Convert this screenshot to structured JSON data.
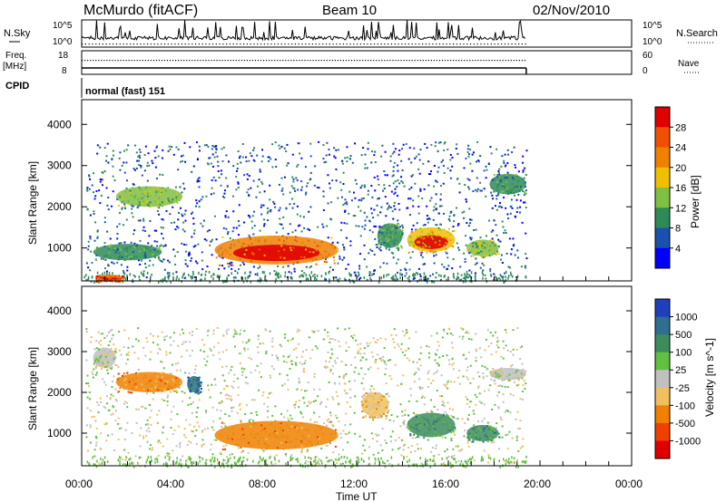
{
  "header": {
    "title": "McMurdo (fitACF)",
    "beam": "Beam 10",
    "date": "02/Nov/2010"
  },
  "summary_panels": {
    "nsky_label": "N.Sky",
    "nsearch_label": "N.Search",
    "freq_label_1": "Freq.",
    "freq_label_2": "[MHz]",
    "nave_label": "Nave",
    "cpid_label": "CPID",
    "cpid_value": "normal (fast) 151",
    "nsky_ticks": [
      "10^5",
      "10^0"
    ],
    "nsearch_ticks": [
      "10^5",
      "10^0"
    ],
    "freq_ticks": [
      "18",
      "8"
    ],
    "nave_ticks": [
      "60",
      "0"
    ]
  },
  "chart_data": [
    {
      "type": "heatmap",
      "panel": "power",
      "ylabel": "Slant Range [km]",
      "yticks": [
        "4000",
        "3000",
        "2000",
        "1000"
      ],
      "ylim": [
        200,
        4600
      ],
      "xlim": [
        0,
        24
      ],
      "colorbar_label": "Power [dB]",
      "colorbar_ticks": [
        "28",
        "24",
        "20",
        "16",
        "12",
        "8",
        "4"
      ],
      "colorbar_colors": [
        "#e00000",
        "#f05000",
        "#f08000",
        "#f0c000",
        "#80c040",
        "#2e8b57",
        "#1a50b0",
        "#0000ff"
      ],
      "data_end_hour": 19.4,
      "blobs": [
        {
          "x0": 5.8,
          "x1": 11.2,
          "y0": 600,
          "y1": 1300,
          "level": 5
        },
        {
          "x0": 14.2,
          "x1": 16.3,
          "y0": 900,
          "y1": 1500,
          "level": 4
        },
        {
          "x0": 1.5,
          "x1": 4.4,
          "y0": 2000,
          "y1": 2500,
          "level": 3
        },
        {
          "x0": 16.8,
          "x1": 18.2,
          "y0": 800,
          "y1": 1200,
          "level": 3
        },
        {
          "x0": 12.9,
          "x1": 14.0,
          "y0": 1000,
          "y1": 1600,
          "level": 2
        },
        {
          "x0": 17.8,
          "x1": 19.4,
          "y0": 2300,
          "y1": 2800,
          "level": 2
        },
        {
          "x0": 0.5,
          "x1": 3.5,
          "y0": 700,
          "y1": 1100,
          "level": 2
        },
        {
          "x0": 0.6,
          "x1": 1.8,
          "y0": 200,
          "y1": 350,
          "level": 6
        }
      ]
    },
    {
      "type": "heatmap",
      "panel": "velocity",
      "ylabel": "Slant Range [km]",
      "yticks": [
        "4000",
        "3000",
        "2000",
        "1000"
      ],
      "ylim": [
        200,
        4600
      ],
      "xlim": [
        0,
        24
      ],
      "colorbar_label": "Velocity [m s^-1]",
      "colorbar_ticks": [
        "1000",
        "500",
        "100",
        "25",
        "-25",
        "-100",
        "-500",
        "-1000"
      ],
      "colorbar_colors": [
        "#1f3fbf",
        "#2e6e8e",
        "#3c8c5c",
        "#60c040",
        "#c0c0c0",
        "#f0c060",
        "#f08000",
        "#f04000",
        "#e00000"
      ],
      "data_end_hour": 19.4,
      "blobs": [
        {
          "x0": 5.8,
          "x1": 11.2,
          "y0": 600,
          "y1": 1300,
          "level": 2
        },
        {
          "x0": 14.2,
          "x1": 16.3,
          "y0": 900,
          "y1": 1500,
          "level": 6
        },
        {
          "x0": 1.5,
          "x1": 4.4,
          "y0": 2000,
          "y1": 2500,
          "level": 2
        },
        {
          "x0": 16.8,
          "x1": 18.2,
          "y0": 800,
          "y1": 1200,
          "level": 6
        },
        {
          "x0": 4.6,
          "x1": 5.2,
          "y0": 2000,
          "y1": 2400,
          "level": 7
        },
        {
          "x0": 17.8,
          "x1": 19.4,
          "y0": 2300,
          "y1": 2600,
          "level": 4
        },
        {
          "x0": 0.5,
          "x1": 1.5,
          "y0": 2600,
          "y1": 3100,
          "level": 4
        },
        {
          "x0": 12.2,
          "x1": 13.4,
          "y0": 1400,
          "y1": 2000,
          "level": 3
        }
      ]
    }
  ],
  "x_axis": {
    "label": "Time UT",
    "ticks": [
      "00:00",
      "04:00",
      "08:00",
      "12:00",
      "16:00",
      "20:00",
      "00:00"
    ]
  }
}
